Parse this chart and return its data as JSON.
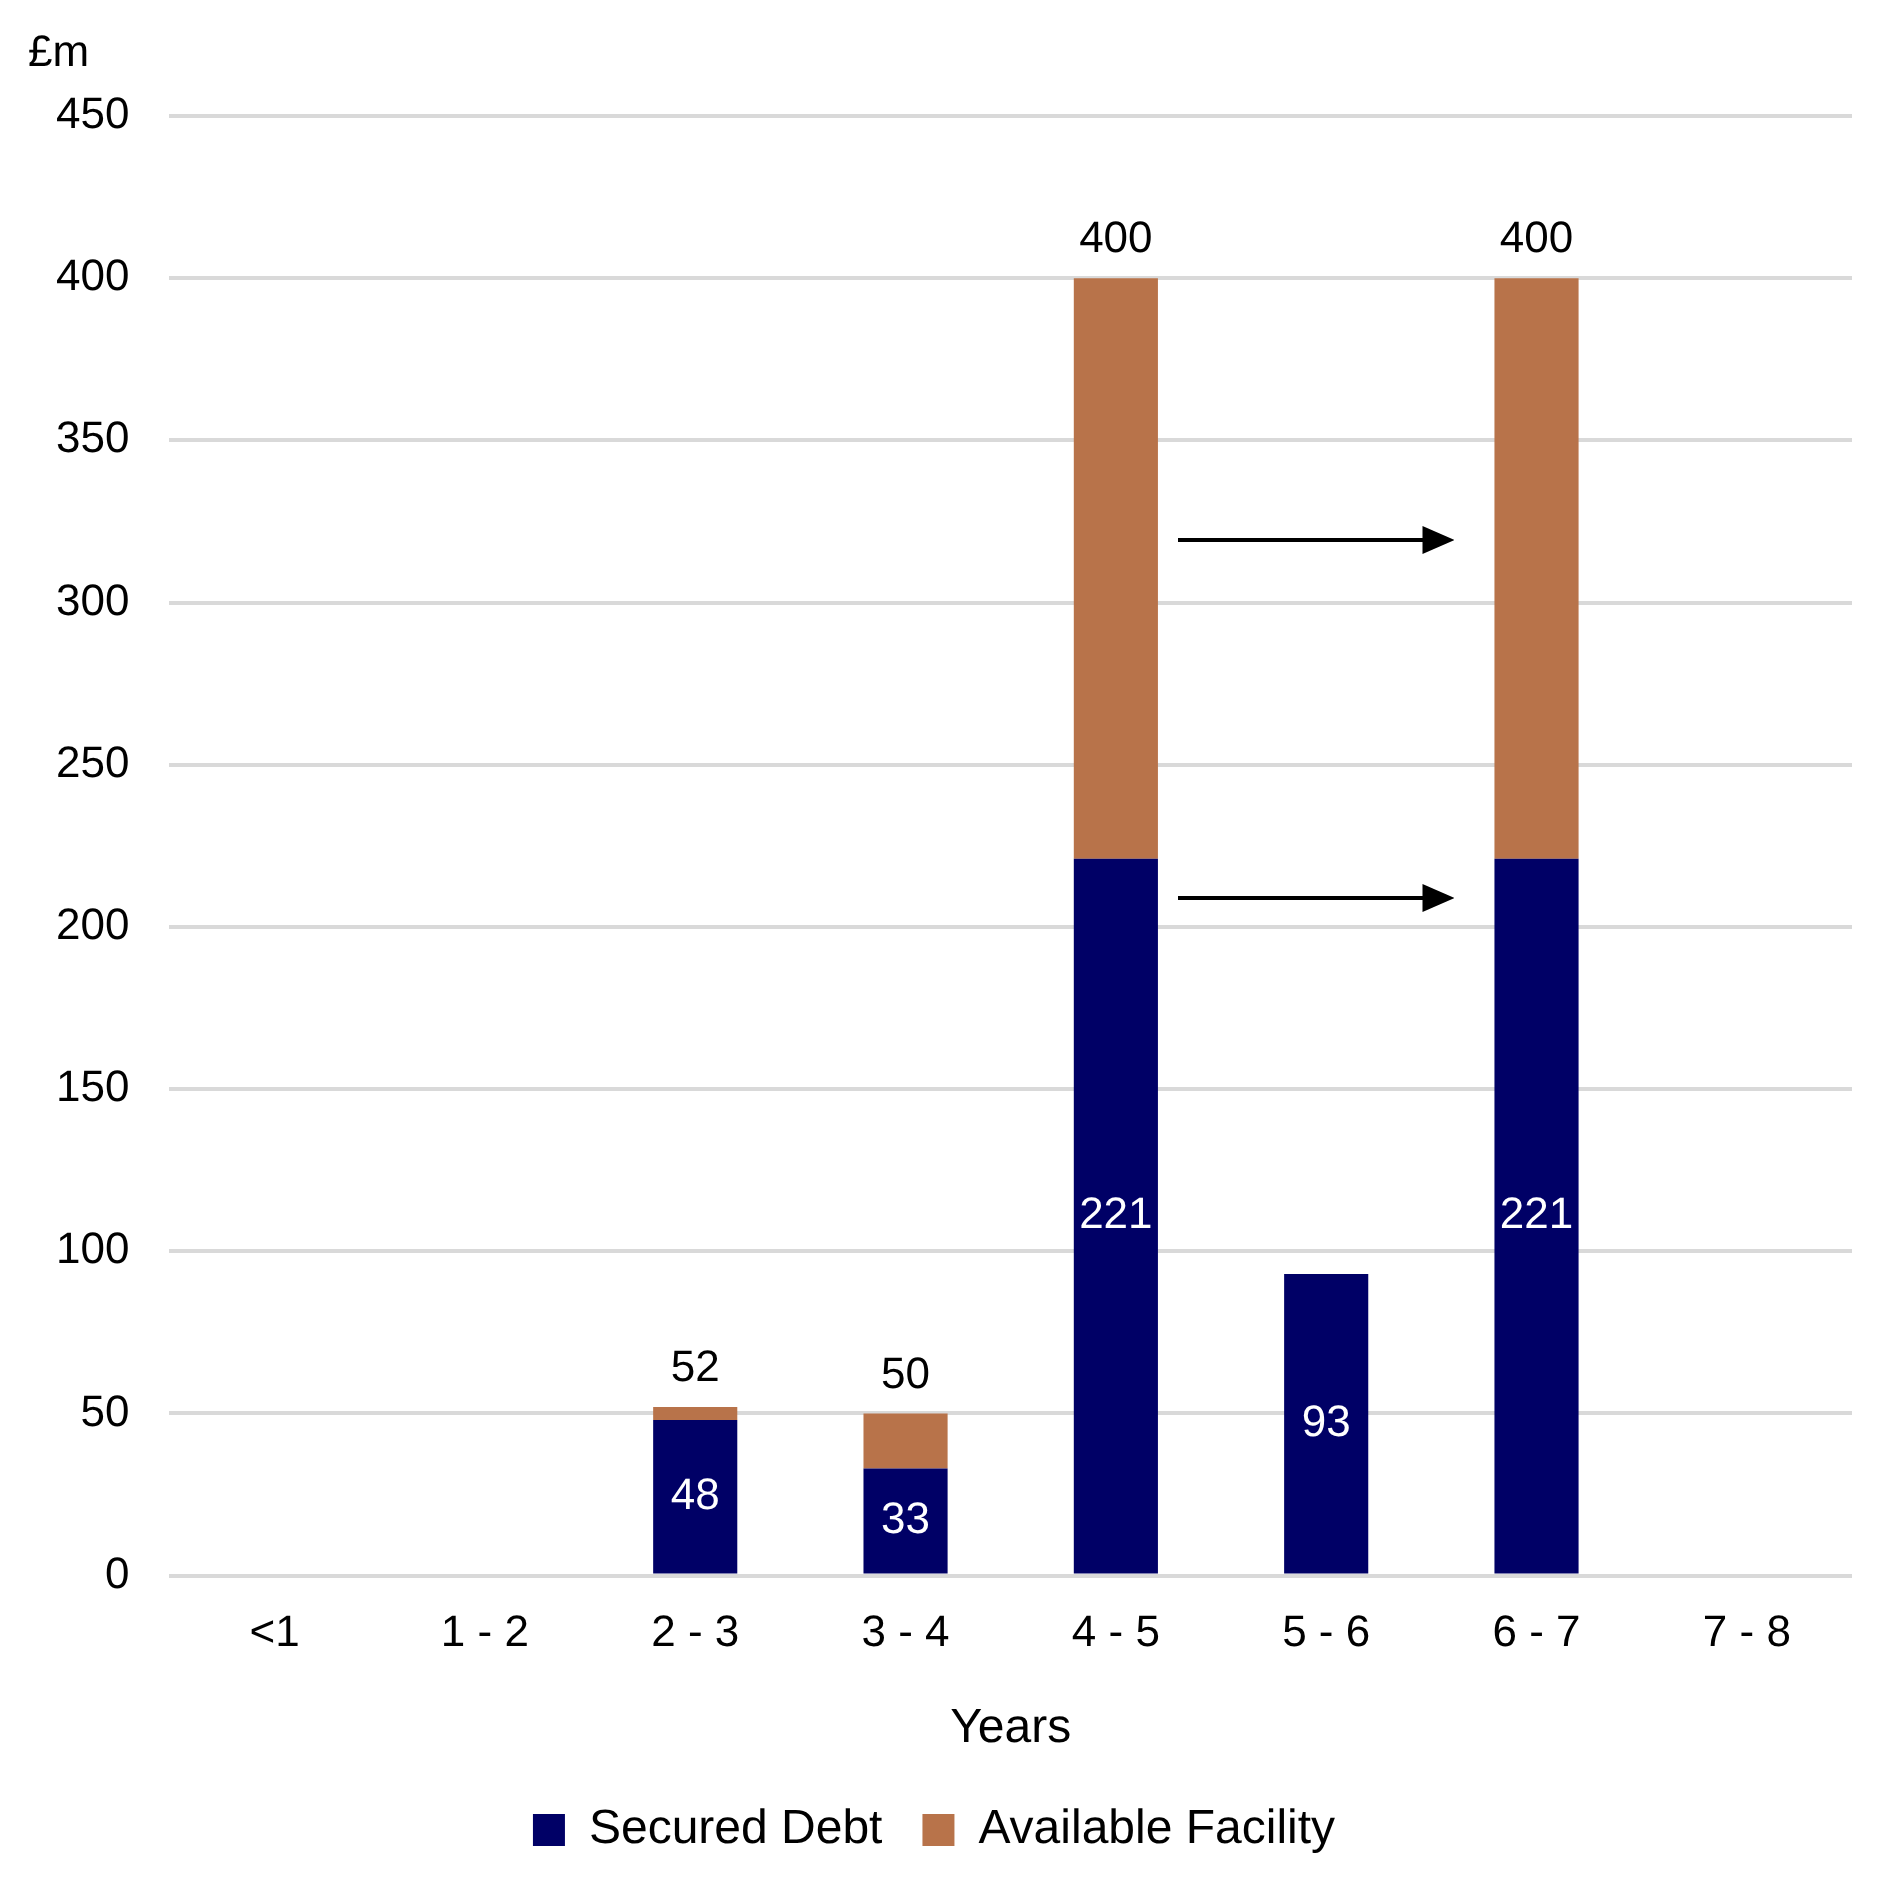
{
  "chart_data": {
    "type": "bar",
    "ylabel": "£m",
    "xlabel": "Years",
    "categories": [
      "<1",
      "1 - 2",
      "2 - 3",
      "3 - 4",
      "4 - 5",
      "5 - 6",
      "6 - 7",
      "7 - 8"
    ],
    "series": [
      {
        "name": "Secured Debt",
        "color": "#000066",
        "values": [
          null,
          null,
          48,
          33,
          221,
          93,
          221,
          null
        ],
        "value_labels": [
          null,
          null,
          "48",
          "33",
          "221",
          "93",
          "221",
          null
        ]
      },
      {
        "name": "Available Facility",
        "color": "#b8734a",
        "values": [
          null,
          null,
          4,
          17,
          179,
          null,
          179,
          null
        ]
      }
    ],
    "stacked": true,
    "totals": [
      null,
      null,
      "52",
      "50",
      "400",
      null,
      "400",
      null
    ],
    "ylim": [
      0,
      450
    ],
    "yticks": [
      0,
      50,
      100,
      150,
      200,
      250,
      300,
      350,
      400,
      450
    ],
    "grid": "y",
    "legend": "bottom"
  }
}
